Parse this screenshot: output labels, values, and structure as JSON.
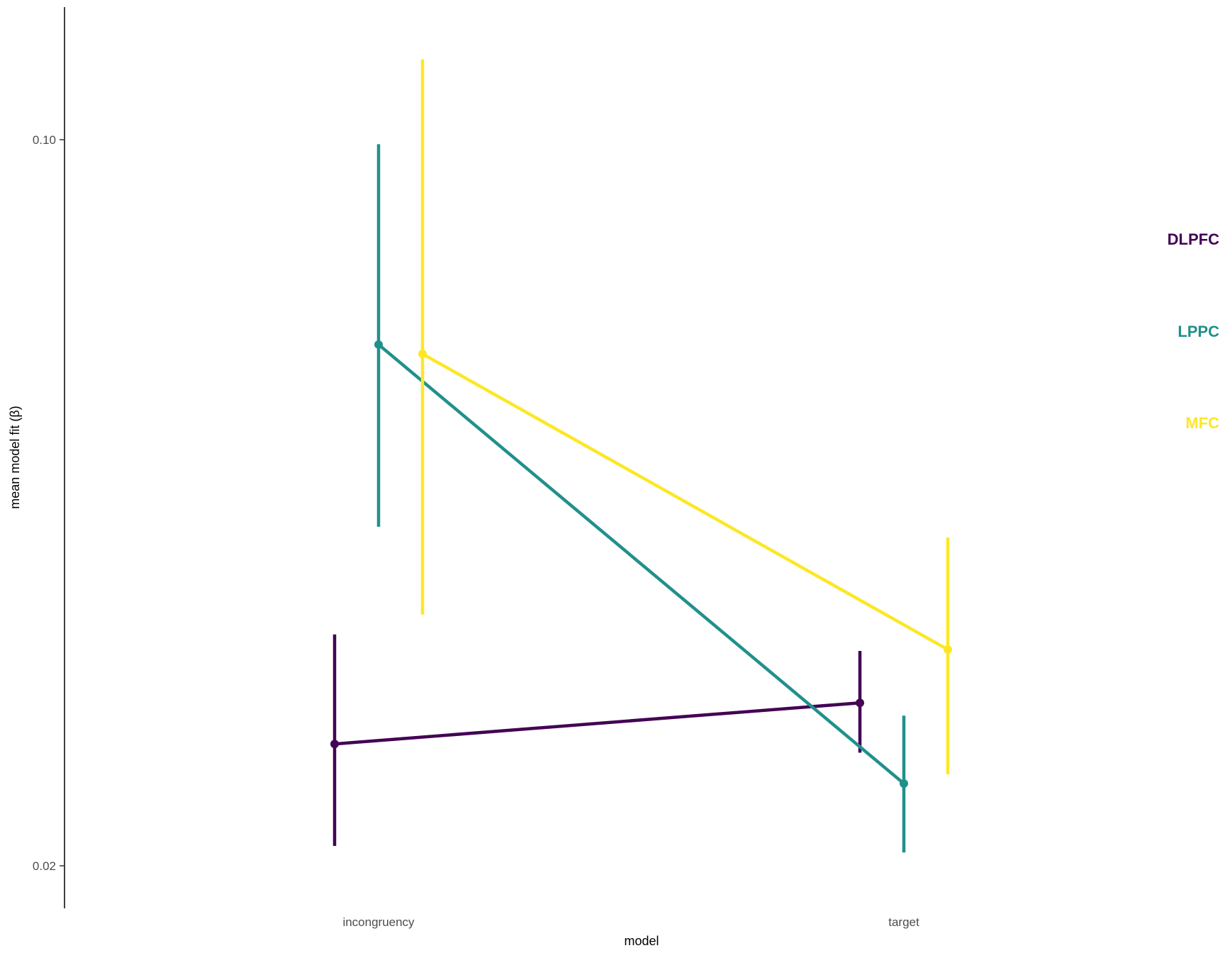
{
  "chart_data": {
    "type": "line",
    "title": "",
    "xlabel": "model",
    "ylabel": "mean model fit (β)",
    "y_scale": "log",
    "ylim": [
      0.0182,
      0.1255
    ],
    "categories": [
      "incongruency",
      "target"
    ],
    "y_ticks": [
      {
        "value": 0.02,
        "label": "0.02"
      },
      {
        "value": 0.1,
        "label": "0.10"
      }
    ],
    "grid": false,
    "legend_placement": "right (direct labels)",
    "series": [
      {
        "name": "DLPFC",
        "color": "#440154",
        "values": [
          0.0262,
          0.0287
        ],
        "lower": [
          0.0209,
          0.0257
        ],
        "upper": [
          0.0334,
          0.0322
        ]
      },
      {
        "name": "LPPC",
        "color": "#21908C",
        "values": [
          0.0635,
          0.024
        ],
        "lower": [
          0.0424,
          0.0206
        ],
        "upper": [
          0.099,
          0.0279
        ]
      },
      {
        "name": "MFC",
        "color": "#FDE725",
        "values": [
          0.0622,
          0.0323
        ],
        "lower": [
          0.0349,
          0.0245
        ],
        "upper": [
          0.1195,
          0.0414
        ]
      }
    ]
  }
}
